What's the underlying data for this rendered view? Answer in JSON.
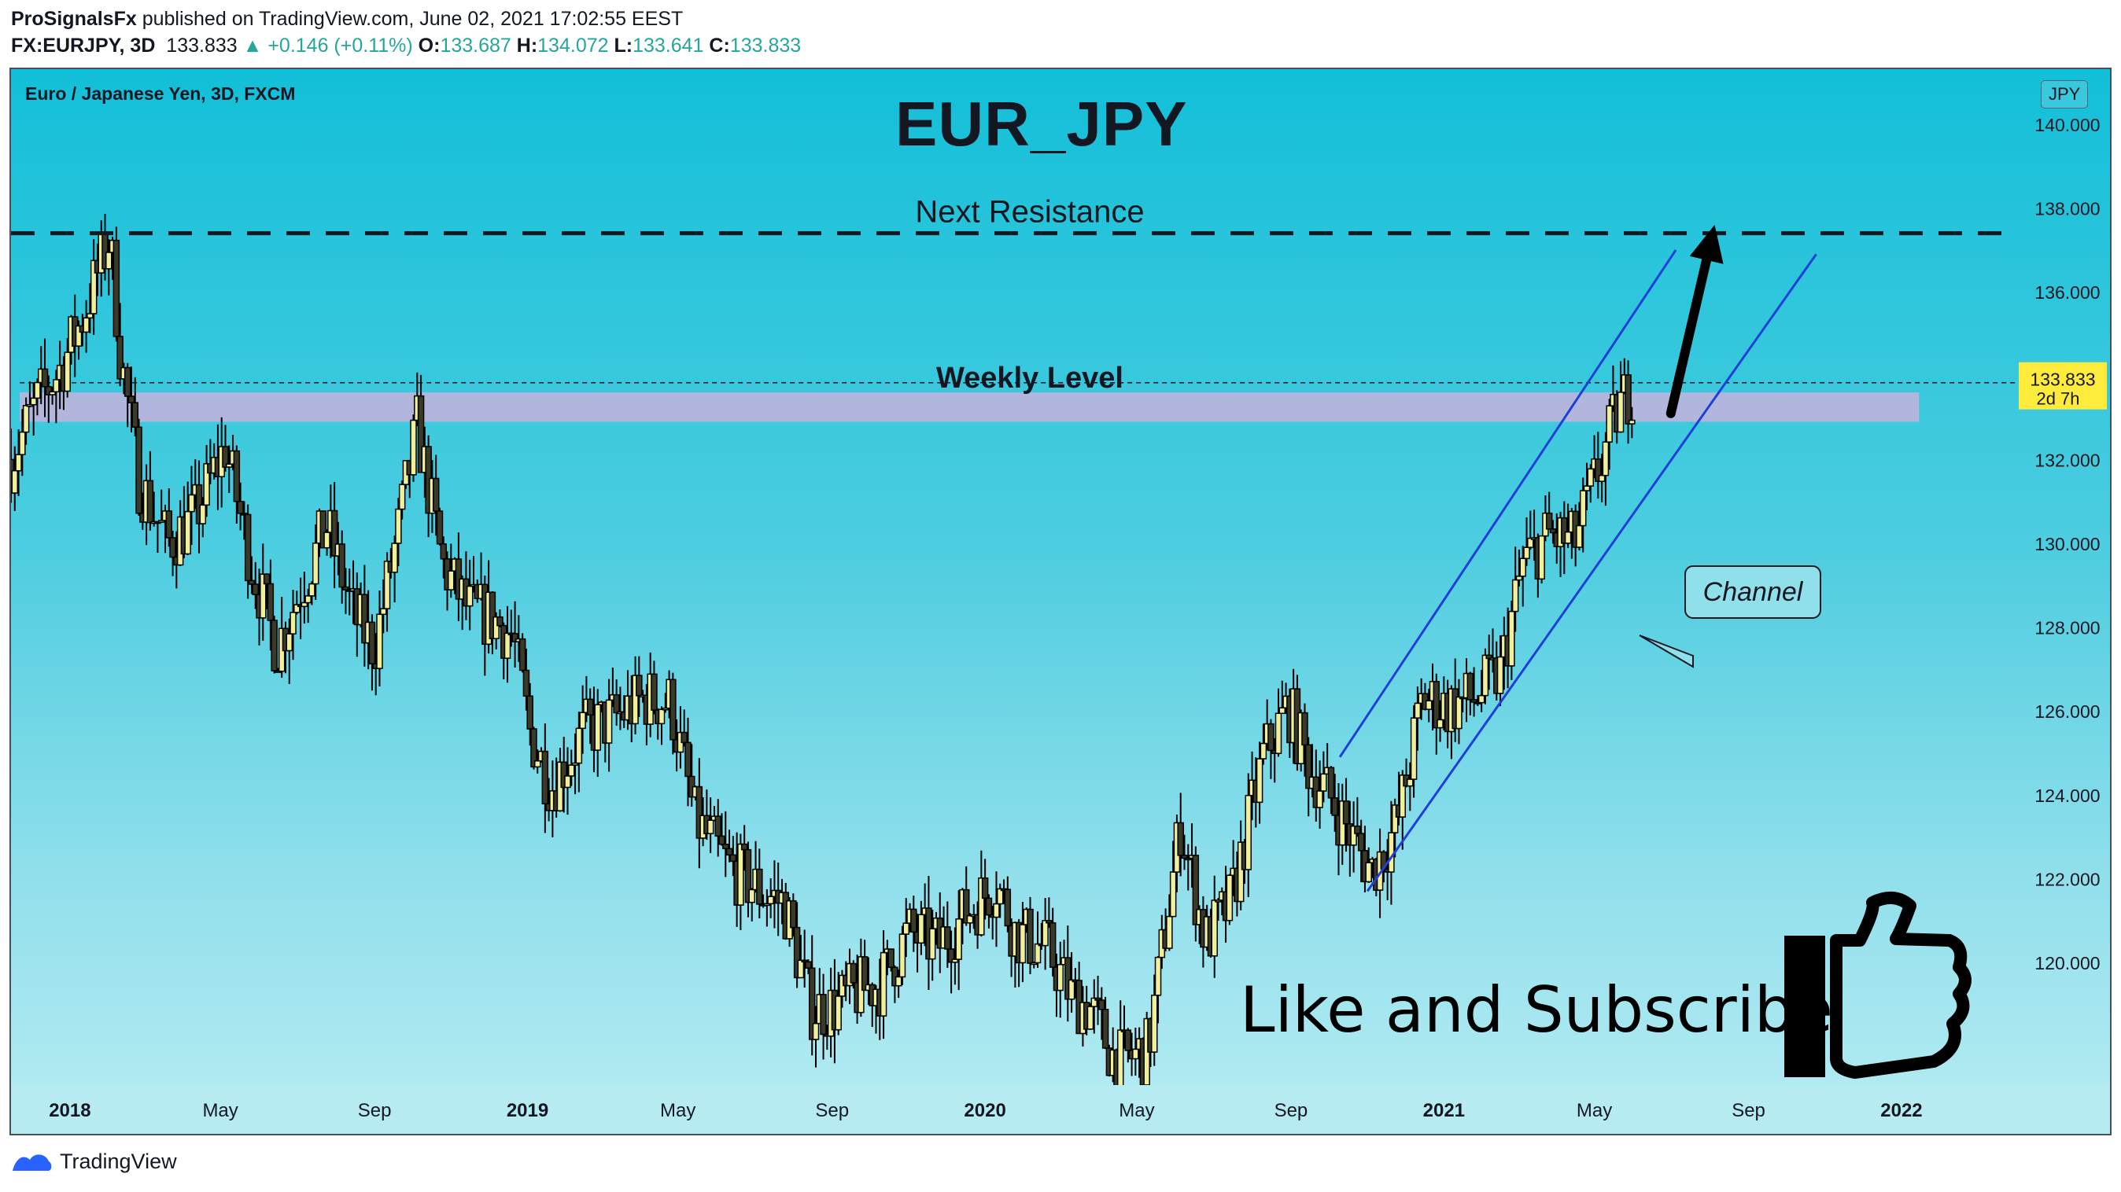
{
  "header": {
    "author": "ProSignalsFx",
    "published": " published on TradingView.com, June 02, 2021 17:02:55 EEST",
    "symbol": "FX:EURJPY, 3D",
    "last": "133.833",
    "change": "▲ +0.146 (+0.11%)",
    "o_label": "O:",
    "o_value": "133.687",
    "h_label": "H:",
    "h_value": "134.072",
    "l_label": "L:",
    "l_value": "133.641",
    "c_label": "C:",
    "c_value": "133.833"
  },
  "chart": {
    "symbol_label": "Euro / Japanese Yen, 3D, FXCM",
    "title": "EUR_JPY",
    "currency": "JPY"
  },
  "footer": {
    "brand": "TradingView"
  },
  "colors": {
    "bg_top": "#12bfd8",
    "bg_bottom": "#b8ecf3",
    "candle_fill": "#f0f09a",
    "candle_edge": "#000000",
    "zone": "#c7b3dc",
    "channel": "#1e40d6",
    "price_tag": "#ffeb3b"
  },
  "icons": [
    "tradingview-logo-icon",
    "thumbs-up-icon",
    "up-arrow-icon"
  ],
  "chart_data": {
    "type": "candlestick",
    "title": "EUR_JPY",
    "ylim": [
      118.2,
      141.6
    ],
    "xlim": [
      "2017-11-15",
      "2022-03-28"
    ],
    "y_ticks": [
      120,
      122,
      124,
      126,
      128,
      130,
      132,
      134,
      136,
      138,
      140
    ],
    "y_tick_labels": [
      "120.000",
      "122.000",
      "124.000",
      "126.000",
      "128.000",
      "130.000",
      "132.000",
      "134.000",
      "136.000",
      "138.000",
      "140.000"
    ],
    "x_ticks": [
      {
        "label": "2018",
        "date": "2018-01-01",
        "bold": true
      },
      {
        "label": "May",
        "date": "2018-05-01",
        "bold": false
      },
      {
        "label": "Sep",
        "date": "2018-09-01",
        "bold": false
      },
      {
        "label": "2019",
        "date": "2019-01-01",
        "bold": true
      },
      {
        "label": "May",
        "date": "2019-05-01",
        "bold": false
      },
      {
        "label": "Sep",
        "date": "2019-09-01",
        "bold": false
      },
      {
        "label": "2020",
        "date": "2020-01-01",
        "bold": true
      },
      {
        "label": "May",
        "date": "2020-05-01",
        "bold": false
      },
      {
        "label": "Sep",
        "date": "2020-09-01",
        "bold": false
      },
      {
        "label": "2021",
        "date": "2021-01-01",
        "bold": true
      },
      {
        "label": "May",
        "date": "2021-05-01",
        "bold": false
      },
      {
        "label": "Sep",
        "date": "2021-09-01",
        "bold": false
      },
      {
        "label": "2022",
        "date": "2022-01-01",
        "bold": true
      }
    ],
    "path": [
      [
        "2017-11-15",
        132.0
      ],
      [
        "2017-12-05",
        133.3
      ],
      [
        "2017-12-25",
        134.2
      ],
      [
        "2018-01-10",
        135.3
      ],
      [
        "2018-01-25",
        136.6
      ],
      [
        "2018-02-02",
        137.3
      ],
      [
        "2018-02-10",
        134.6
      ],
      [
        "2018-02-25",
        131.5
      ],
      [
        "2018-03-20",
        130.0
      ],
      [
        "2018-04-10",
        130.6
      ],
      [
        "2018-05-05",
        132.3
      ],
      [
        "2018-05-25",
        129.6
      ],
      [
        "2018-06-15",
        127.5
      ],
      [
        "2018-07-05",
        129.0
      ],
      [
        "2018-07-25",
        130.4
      ],
      [
        "2018-08-15",
        128.3
      ],
      [
        "2018-09-01",
        127.5
      ],
      [
        "2018-09-20",
        130.3
      ],
      [
        "2018-10-05",
        132.8
      ],
      [
        "2018-10-25",
        129.5
      ],
      [
        "2018-11-15",
        128.4
      ],
      [
        "2018-12-05",
        128.2
      ],
      [
        "2018-12-20",
        127.8
      ],
      [
        "2019-01-03",
        125.5
      ],
      [
        "2019-01-20",
        124.2
      ],
      [
        "2019-02-15",
        125.5
      ],
      [
        "2019-03-10",
        125.8
      ],
      [
        "2019-04-05",
        126.3
      ],
      [
        "2019-04-25",
        126.2
      ],
      [
        "2019-05-15",
        123.4
      ],
      [
        "2019-06-10",
        122.3
      ],
      [
        "2019-07-05",
        121.7
      ],
      [
        "2019-07-25",
        121.4
      ],
      [
        "2019-08-15",
        118.9
      ],
      [
        "2019-09-01",
        118.9
      ],
      [
        "2019-09-20",
        119.3
      ],
      [
        "2019-10-10",
        119.5
      ],
      [
        "2019-11-01",
        120.7
      ],
      [
        "2019-11-25",
        120.4
      ],
      [
        "2019-12-15",
        121.1
      ],
      [
        "2020-01-10",
        121.9
      ],
      [
        "2020-01-25",
        120.7
      ],
      [
        "2020-02-20",
        120.3
      ],
      [
        "2020-03-10",
        119.2
      ],
      [
        "2020-03-25",
        118.9
      ],
      [
        "2020-04-15",
        117.6
      ],
      [
        "2020-05-10",
        117.9
      ],
      [
        "2020-06-05",
        123.3
      ],
      [
        "2020-06-25",
        120.5
      ],
      [
        "2020-07-15",
        121.4
      ],
      [
        "2020-08-10",
        124.9
      ],
      [
        "2020-08-30",
        126.1
      ],
      [
        "2020-09-15",
        124.7
      ],
      [
        "2020-10-05",
        123.8
      ],
      [
        "2020-10-25",
        122.7
      ],
      [
        "2020-11-05",
        122.2
      ],
      [
        "2020-11-25",
        123.3
      ],
      [
        "2020-12-15",
        126.3
      ],
      [
        "2021-01-05",
        126.1
      ],
      [
        "2021-01-25",
        126.3
      ],
      [
        "2021-02-15",
        126.9
      ],
      [
        "2021-03-05",
        129.5
      ],
      [
        "2021-03-25",
        130.2
      ],
      [
        "2021-04-15",
        130.0
      ],
      [
        "2021-05-05",
        131.8
      ],
      [
        "2021-05-20",
        133.2
      ],
      [
        "2021-06-02",
        133.83
      ]
    ],
    "last_price": {
      "value": 133.833,
      "label": "133.833",
      "countdown": "2d 7h"
    },
    "annotations": {
      "resistance": {
        "label": "Next Resistance",
        "value": 137.4,
        "style": "dashed"
      },
      "weekly_level": {
        "label": "Weekly Level",
        "low": 132.9,
        "high": 133.6,
        "mid": 133.25,
        "x_start": "2017-11-22",
        "x_end": "2022-01-15"
      },
      "channel": {
        "label": "Channel",
        "upper": {
          "from": [
            "2020-10-10",
            124.9
          ],
          "to": [
            "2021-07-05",
            137.0
          ]
        },
        "lower": {
          "from": [
            "2020-11-01",
            121.7
          ],
          "to": [
            "2021-10-25",
            136.9
          ]
        }
      },
      "arrow": {
        "from": [
          "2021-07-01",
          133.1
        ],
        "to": [
          "2021-08-05",
          137.6
        ]
      },
      "cta": "Like and Subscribe"
    }
  }
}
